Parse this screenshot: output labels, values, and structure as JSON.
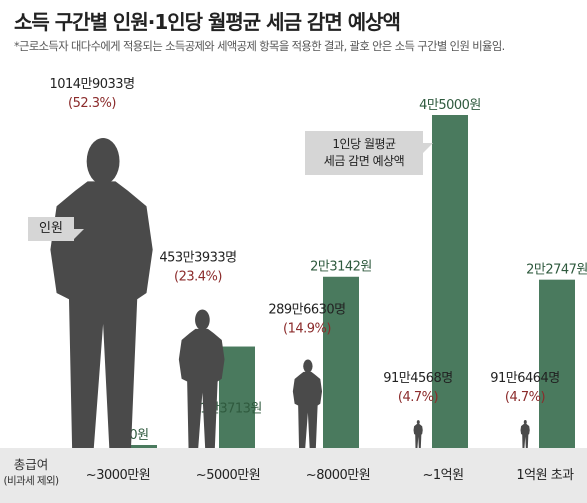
{
  "title": "소득 구간별 인원·1인당 월평균 세금 감면 예상액",
  "note": "*근로소득자 대다수에게 적용되는 소득공제와 세액공제 항목을 적용한 결과, 괄호 안은 소득 구간별 인원 비율임.",
  "callouts": {
    "people": "인원",
    "tax_line1": "1인당 월평균",
    "tax_line2": "세금 감면 예상액"
  },
  "x_axis": {
    "title": "총급여",
    "subtitle": "(비과세 제외)"
  },
  "colors": {
    "people": "#4a4a4a",
    "tax": "#4a7a5e",
    "people_value": "#222222",
    "people_pct": "#8b2b2b",
    "tax_value": "#2f5a3e",
    "axis_band": "#e9e9e9"
  },
  "chart_data": {
    "type": "bar",
    "categories": [
      "~3000만원",
      "~5000만원",
      "~8000만원",
      "~1억원",
      "1억원 초과"
    ],
    "series": [
      {
        "name": "인원",
        "values": [
          10149033,
          4533933,
          2896630,
          914568,
          916464
        ],
        "labels": [
          "1014만9033명",
          "453만3933명",
          "289만6630명",
          "91만4568명",
          "91만6464명"
        ],
        "pct_labels": [
          "(52.3%)",
          "(23.4%)",
          "(14.9%)",
          "(4.7%)",
          "(4.7%)"
        ],
        "pct": [
          52.3,
          23.4,
          14.9,
          4.7,
          4.7
        ]
      },
      {
        "name": "1인당 월평균 세금 감면 예상액",
        "values": [
          0,
          13713,
          23142,
          45000,
          22747
        ],
        "labels": [
          "0원",
          "1만3713원",
          "2만3142원",
          "4만5000원",
          "2만2747원"
        ]
      }
    ]
  }
}
